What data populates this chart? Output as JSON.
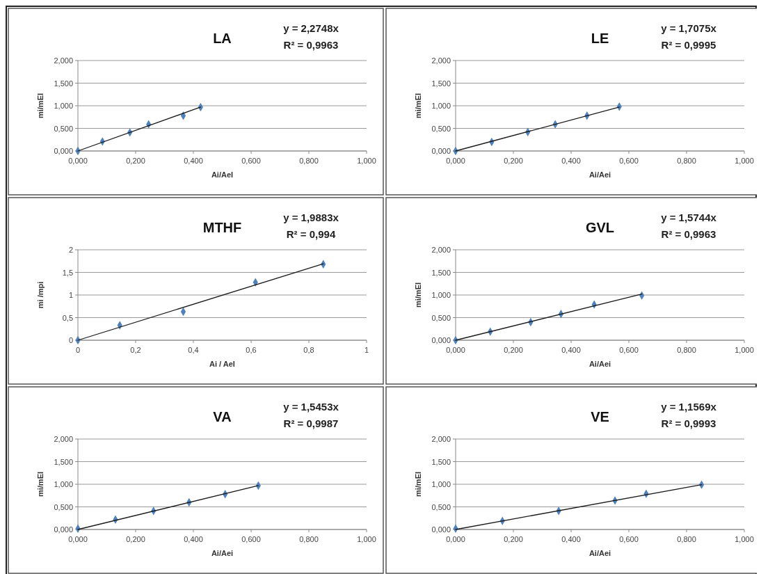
{
  "chart_data": [
    {
      "type": "scatter",
      "title": "LA",
      "xlabel": "Ai/AeI",
      "ylabel": "mi/mEI",
      "annotations": [
        "y = 2,2748x",
        "R² = 0,9963"
      ],
      "xlim": [
        0,
        1
      ],
      "ylim": [
        0,
        2
      ],
      "xticks": [
        {
          "value": 0,
          "label": "0,000"
        },
        {
          "value": 0.2,
          "label": "0,200"
        },
        {
          "value": 0.4,
          "label": "0,400"
        },
        {
          "value": 0.6,
          "label": "0,600"
        },
        {
          "value": 0.8,
          "label": "0,800"
        },
        {
          "value": 1,
          "label": "1,000"
        }
      ],
      "yticks": [
        {
          "value": 0,
          "label": "0,000"
        },
        {
          "value": 0.5,
          "label": "0,500"
        },
        {
          "value": 1,
          "label": "1,000"
        },
        {
          "value": 1.5,
          "label": "1,500"
        },
        {
          "value": 2,
          "label": "2,000"
        }
      ],
      "grid": "y",
      "series": [
        {
          "color": "#4f81bd",
          "marker": "diamond",
          "x": [
            0,
            0.085,
            0.18,
            0.245,
            0.365,
            0.425
          ],
          "values": [
            0,
            0.21,
            0.41,
            0.59,
            0.78,
            0.97
          ]
        },
        {
          "type": "line",
          "color": "#1a1a1a",
          "x": [
            0,
            0.425
          ],
          "values": [
            0,
            0.97
          ]
        }
      ]
    },
    {
      "type": "scatter",
      "title": "LE",
      "xlabel": "Ai/Aei",
      "ylabel": "mi/mEI",
      "annotations": [
        "y = 1,7075x",
        "R² = 0,9995"
      ],
      "xlim": [
        0,
        1
      ],
      "ylim": [
        0,
        2
      ],
      "xticks": [
        {
          "value": 0,
          "label": "0,000"
        },
        {
          "value": 0.2,
          "label": "0,200"
        },
        {
          "value": 0.4,
          "label": "0,400"
        },
        {
          "value": 0.6,
          "label": "0,600"
        },
        {
          "value": 0.8,
          "label": "0,800"
        },
        {
          "value": 1,
          "label": "1,000"
        }
      ],
      "yticks": [
        {
          "value": 0,
          "label": "0,000"
        },
        {
          "value": 0.5,
          "label": "0,500"
        },
        {
          "value": 1,
          "label": "1,000"
        },
        {
          "value": 1.5,
          "label": "1,500"
        },
        {
          "value": 2,
          "label": "2,000"
        }
      ],
      "grid": "y",
      "series": [
        {
          "color": "#4f81bd",
          "marker": "diamond",
          "x": [
            0,
            0.125,
            0.25,
            0.345,
            0.455,
            0.567
          ],
          "values": [
            0,
            0.2,
            0.42,
            0.59,
            0.78,
            0.98
          ]
        },
        {
          "type": "line",
          "color": "#1a1a1a",
          "x": [
            0,
            0.567
          ],
          "values": [
            0,
            0.97
          ]
        }
      ]
    },
    {
      "type": "scatter",
      "title": "MTHF",
      "xlabel": "Ai / AeI",
      "ylabel": "mi /mpi",
      "annotations": [
        "y = 1,9883x",
        "R² = 0,994"
      ],
      "xlim": [
        0,
        1
      ],
      "ylim": [
        0,
        2
      ],
      "xticks": [
        0,
        {
          "value": 0.2,
          "label": "0,2"
        },
        {
          "value": 0.4,
          "label": "0,4"
        },
        {
          "value": 0.6,
          "label": "0,6"
        },
        {
          "value": 0.8,
          "label": "0,8"
        },
        1
      ],
      "yticks": [
        0,
        {
          "value": 0.5,
          "label": "0,5"
        },
        1,
        {
          "value": 1.5,
          "label": "1,5"
        },
        2
      ],
      "grid": "y",
      "series": [
        {
          "color": "#4f81bd",
          "marker": "diamond",
          "x": [
            0,
            0.145,
            0.365,
            0.615,
            0.85
          ],
          "values": [
            0,
            0.33,
            0.63,
            1.28,
            1.68
          ]
        },
        {
          "type": "line",
          "color": "#1a1a1a",
          "x": [
            0,
            0.85
          ],
          "values": [
            0,
            1.69
          ]
        }
      ]
    },
    {
      "type": "scatter",
      "title": "GVL",
      "xlabel": "Ai/Aei",
      "ylabel": "mi/mEI",
      "annotations": [
        "y = 1,5744x",
        "R² = 0,9963"
      ],
      "xlim": [
        0,
        1
      ],
      "ylim": [
        0,
        2
      ],
      "xticks": [
        {
          "value": 0,
          "label": "0,000"
        },
        {
          "value": 0.2,
          "label": "0,200"
        },
        {
          "value": 0.4,
          "label": "0,400"
        },
        {
          "value": 0.6,
          "label": "0,600"
        },
        {
          "value": 0.8,
          "label": "0,800"
        },
        {
          "value": 1,
          "label": "1,000"
        }
      ],
      "yticks": [
        {
          "value": 0,
          "label": "0,000"
        },
        {
          "value": 0.5,
          "label": "0,500"
        },
        {
          "value": 1,
          "label": "1,000"
        },
        {
          "value": 1.5,
          "label": "1,500"
        },
        {
          "value": 2,
          "label": "2,000"
        }
      ],
      "grid": "y",
      "series": [
        {
          "color": "#4f81bd",
          "marker": "diamond",
          "x": [
            0,
            0.12,
            0.26,
            0.365,
            0.48,
            0.645
          ],
          "values": [
            0,
            0.19,
            0.4,
            0.58,
            0.79,
            0.99
          ]
        },
        {
          "type": "line",
          "color": "#1a1a1a",
          "x": [
            0,
            0.645
          ],
          "values": [
            0,
            1.02
          ]
        }
      ]
    },
    {
      "type": "scatter",
      "title": "VA",
      "xlabel": "Ai/Aei",
      "ylabel": "mi/mEI",
      "annotations": [
        "y = 1,5453x",
        "R² = 0,9987"
      ],
      "xlim": [
        0,
        1
      ],
      "ylim": [
        0,
        2
      ],
      "xticks": [
        {
          "value": 0,
          "label": "0,000"
        },
        {
          "value": 0.2,
          "label": "0,200"
        },
        {
          "value": 0.4,
          "label": "0,400"
        },
        {
          "value": 0.6,
          "label": "0,600"
        },
        {
          "value": 0.8,
          "label": "0,800"
        },
        {
          "value": 1,
          "label": "1,000"
        }
      ],
      "yticks": [
        {
          "value": 0,
          "label": "0,000"
        },
        {
          "value": 0.5,
          "label": "0,500"
        },
        {
          "value": 1,
          "label": "1,000"
        },
        {
          "value": 1.5,
          "label": "1,500"
        },
        {
          "value": 2,
          "label": "2,000"
        }
      ],
      "grid": "y",
      "series": [
        {
          "color": "#4f81bd",
          "marker": "diamond",
          "x": [
            0,
            0.13,
            0.262,
            0.385,
            0.51,
            0.625
          ],
          "values": [
            0.02,
            0.22,
            0.41,
            0.6,
            0.78,
            0.97
          ]
        },
        {
          "type": "line",
          "color": "#1a1a1a",
          "x": [
            0,
            0.625
          ],
          "values": [
            0,
            0.97
          ]
        }
      ]
    },
    {
      "type": "scatter",
      "title": "VE",
      "xlabel": "Ai/Aei",
      "ylabel": "mi/mEI",
      "annotations": [
        "y = 1,1569x",
        "R² = 0,9993"
      ],
      "xlim": [
        0,
        1
      ],
      "ylim": [
        0,
        2
      ],
      "xticks": [
        {
          "value": 0,
          "label": "0,000"
        },
        {
          "value": 0.2,
          "label": "0,200"
        },
        {
          "value": 0.4,
          "label": "0,400"
        },
        {
          "value": 0.6,
          "label": "0,600"
        },
        {
          "value": 0.8,
          "label": "0,800"
        },
        {
          "value": 1,
          "label": "1,000"
        }
      ],
      "yticks": [
        {
          "value": 0,
          "label": "0,000"
        },
        {
          "value": 0.5,
          "label": "0,500"
        },
        {
          "value": 1,
          "label": "1,000"
        },
        {
          "value": 1.5,
          "label": "1,500"
        },
        {
          "value": 2,
          "label": "2,000"
        }
      ],
      "grid": "y",
      "series": [
        {
          "color": "#4f81bd",
          "marker": "diamond",
          "x": [
            0,
            0.162,
            0.357,
            0.552,
            0.66,
            0.852
          ],
          "values": [
            0.02,
            0.19,
            0.41,
            0.64,
            0.79,
            0.99
          ]
        },
        {
          "type": "line",
          "color": "#1a1a1a",
          "x": [
            0,
            0.852
          ],
          "values": [
            0,
            0.99
          ]
        }
      ]
    }
  ]
}
